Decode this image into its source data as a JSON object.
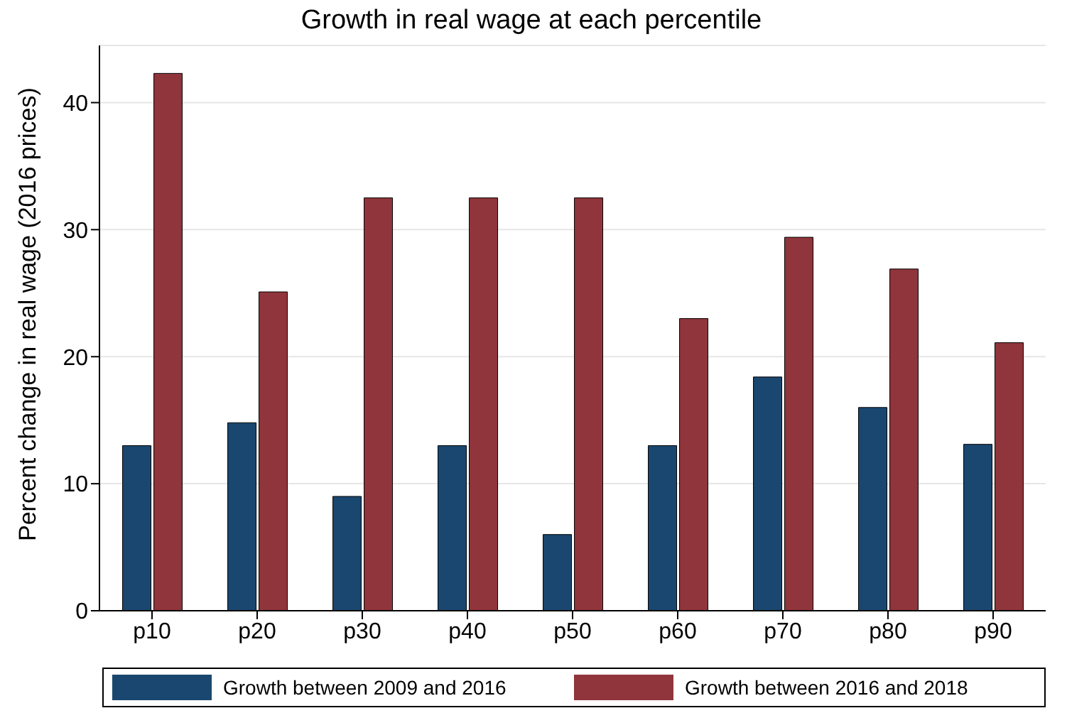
{
  "chart_data": {
    "type": "bar",
    "title": "Growth in real wage at each percentile",
    "ylabel": "Percent change in real wage (2016 prices)",
    "categories": [
      "p10",
      "p20",
      "p30",
      "p40",
      "p50",
      "p60",
      "p70",
      "p80",
      "p90"
    ],
    "series": [
      {
        "name": "Growth between 2009 and 2016",
        "color": "#1a476f",
        "values": [
          13,
          14.8,
          9,
          13,
          6,
          13,
          18.4,
          16,
          13.1
        ]
      },
      {
        "name": "Growth between 2016 and 2018",
        "color": "#90353b",
        "values": [
          42.3,
          25.1,
          32.5,
          32.5,
          32.5,
          23,
          29.4,
          26.9,
          21.1
        ]
      }
    ],
    "ylim": [
      0,
      44.5
    ],
    "yticks": [
      0,
      10,
      20,
      30,
      40
    ],
    "grid": "y",
    "legend": "bottom"
  }
}
